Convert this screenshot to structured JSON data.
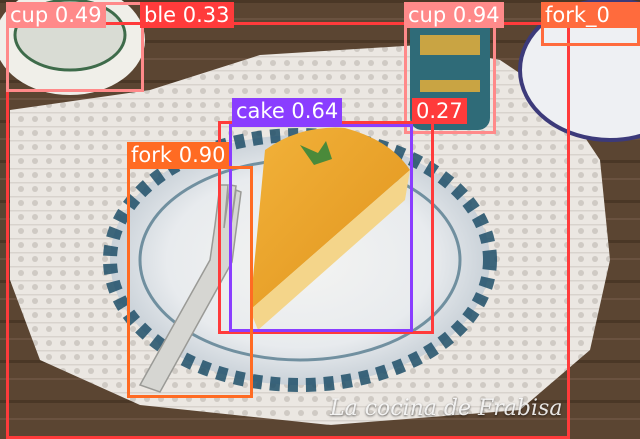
{
  "watermark": "La cocina de Frabisa",
  "colors": {
    "dining_table": "#ff3b3b",
    "cup_left": "#ff8a8a",
    "cup_right": "#ff8a8a",
    "fork_top_right": "#ff6b3d",
    "cake": "#8a3dff",
    "fork": "#ff6b23",
    "unknown_027": "#ff3b3b"
  },
  "detections": [
    {
      "id": "dining_table",
      "label": "table 0.33",
      "visible_label": "ble 0.33"
    },
    {
      "id": "cup_left",
      "label": "cup 0.49"
    },
    {
      "id": "cup_right",
      "label": "cup 0.94"
    },
    {
      "id": "fork_top_right",
      "label": "fork_0"
    },
    {
      "id": "unknown_027",
      "label": "0.27"
    },
    {
      "id": "cake",
      "label": "cake 0.64"
    },
    {
      "id": "fork",
      "label": "fork 0.90"
    }
  ]
}
